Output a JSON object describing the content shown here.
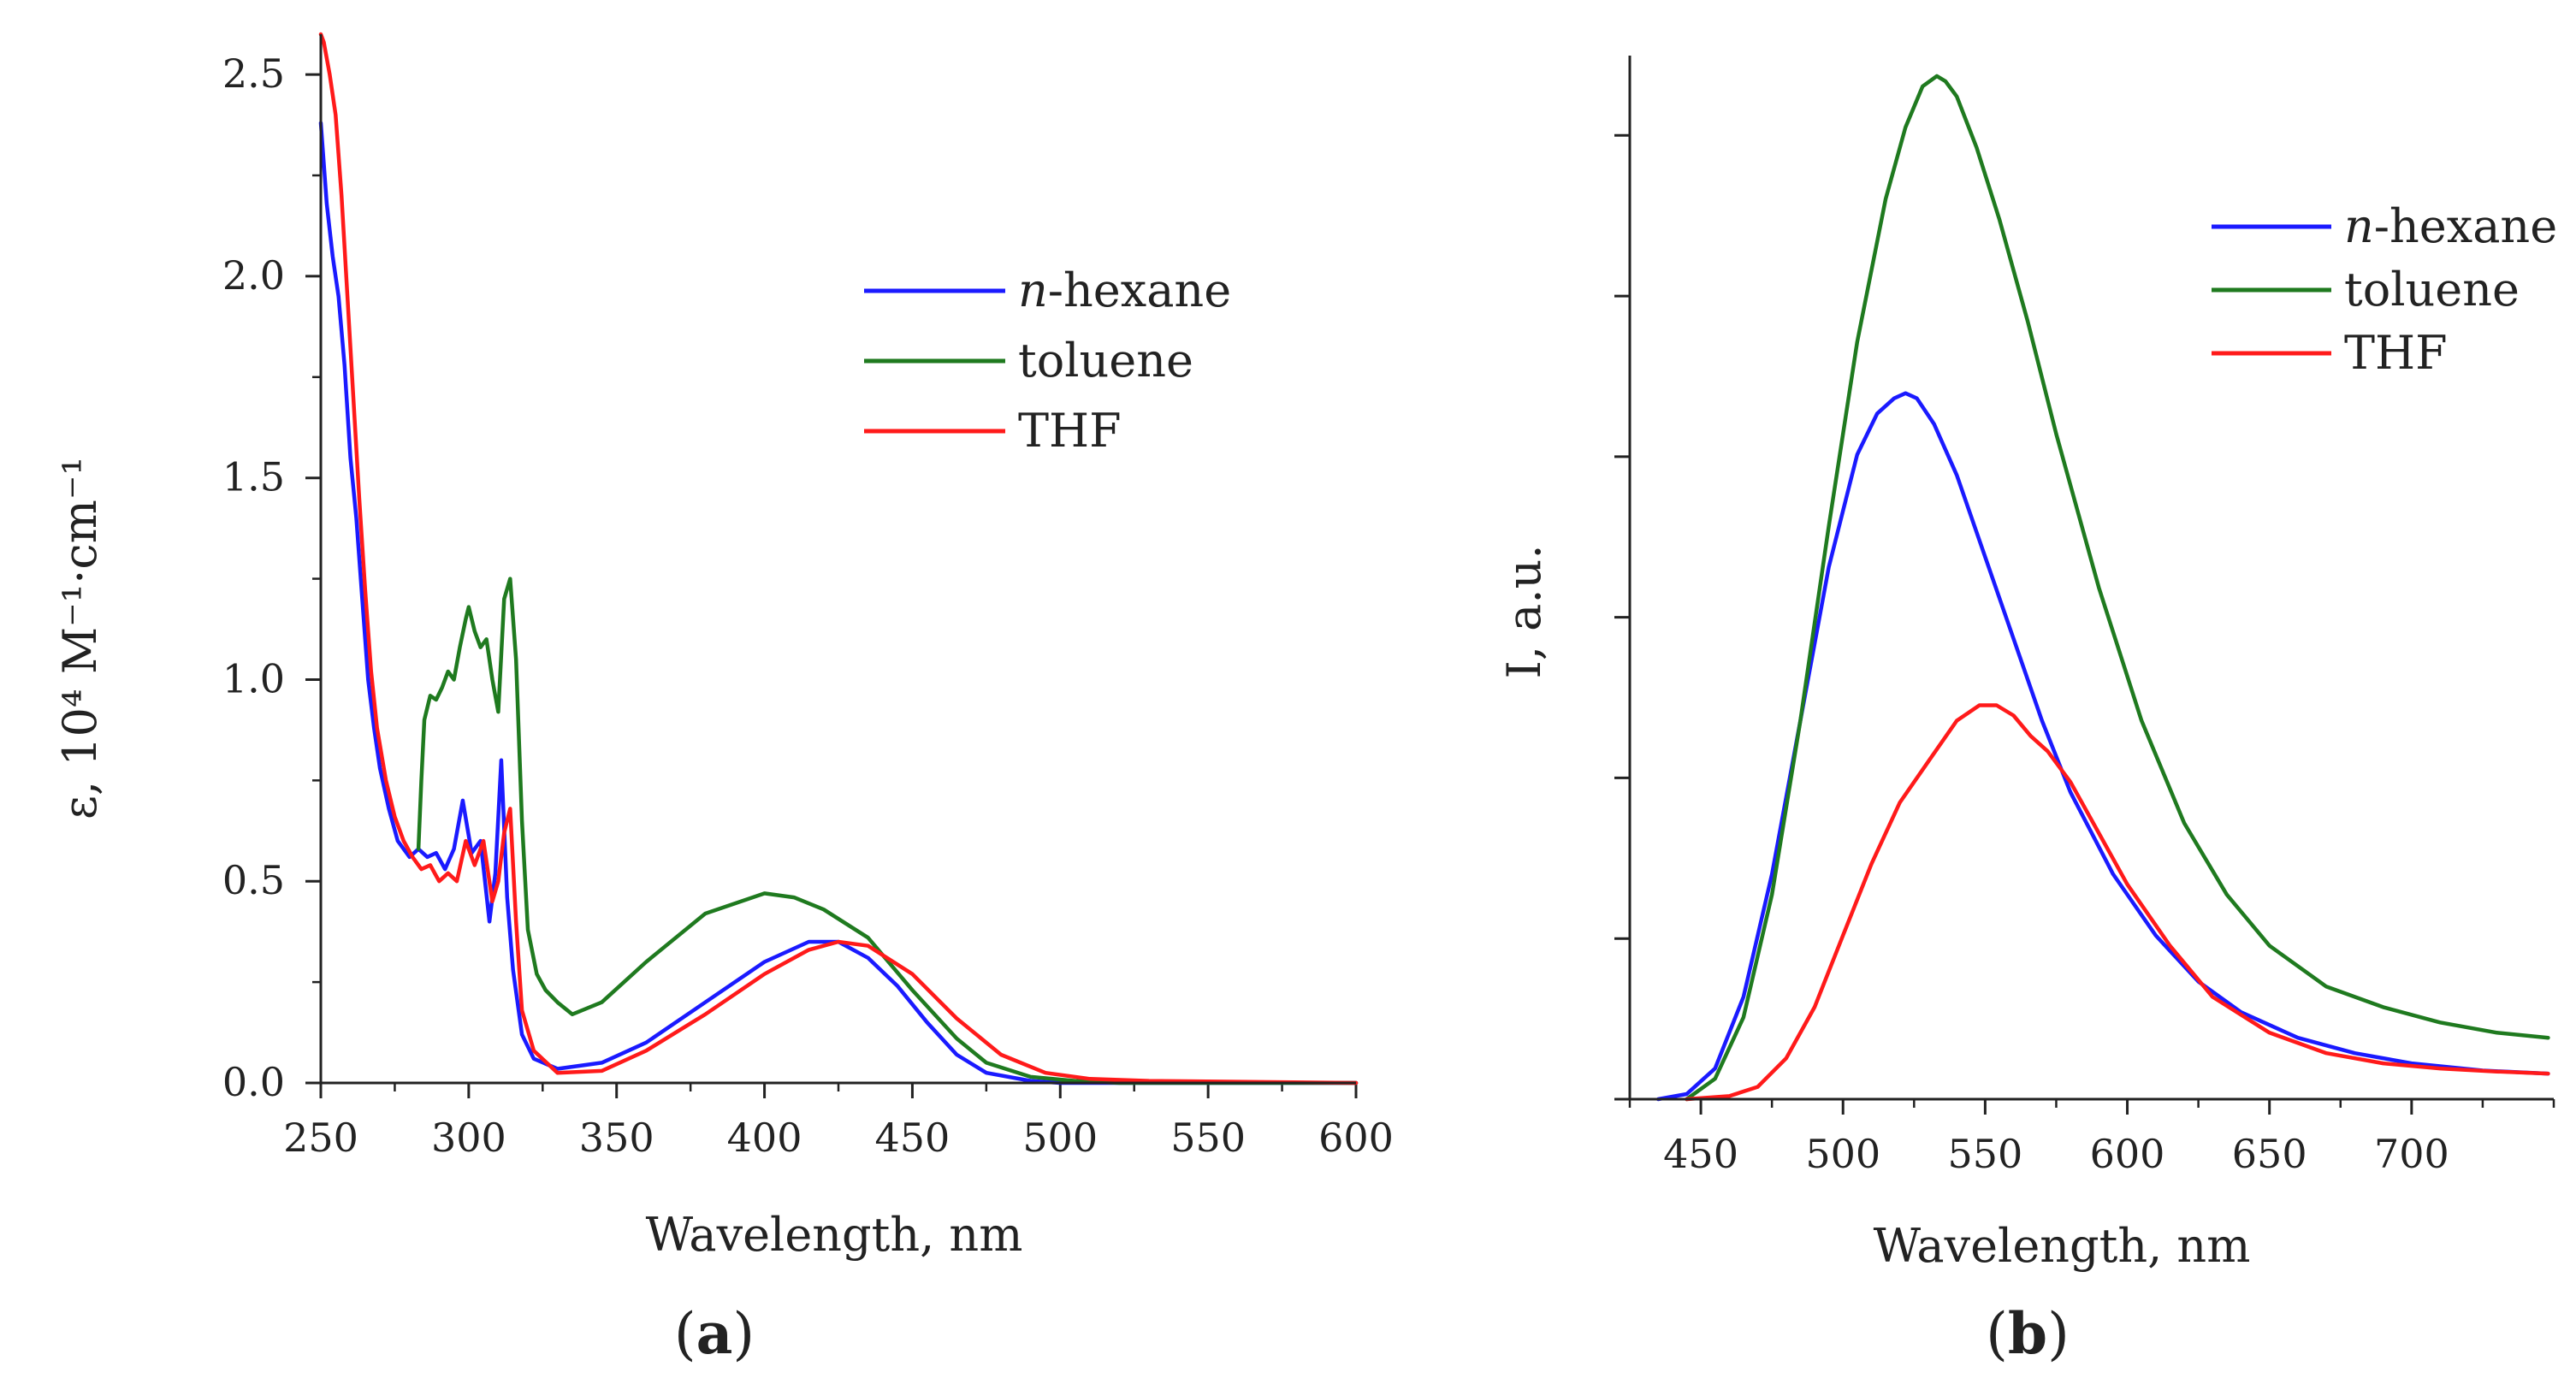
{
  "figure": {
    "panel_a_label": {
      "open": "(",
      "letter": "a",
      "close": ")"
    },
    "panel_b_label": {
      "open": "(",
      "letter": "b",
      "close": ")"
    }
  },
  "colors": {
    "n-hexane": "#1a1aff",
    "toluene": "#1f7a1f",
    "THF": "#ff1a1a"
  },
  "chart_data": [
    {
      "id": "a",
      "type": "line",
      "title": "",
      "xlabel": "Wavelength, nm",
      "ylabel": "ε, 10⁴ M⁻¹·cm⁻¹",
      "xlim": [
        250,
        600
      ],
      "ylim": [
        0,
        2.6
      ],
      "xticks": [
        250,
        300,
        350,
        400,
        450,
        500,
        550,
        600
      ],
      "yticks": [
        0.0,
        0.5,
        1.0,
        1.5,
        2.0,
        2.5
      ],
      "ytick_labels": [
        "0.0",
        "0.5",
        "1.0",
        "1.5",
        "2.0",
        "2.5"
      ],
      "legend_position": "upper-right",
      "series": [
        {
          "name": "n-hexane",
          "label_italic": "n",
          "label_rest": "-hexane",
          "x": [
            250,
            252,
            254,
            256,
            258,
            260,
            262,
            264,
            266,
            268,
            270,
            273,
            276,
            280,
            283,
            286,
            289,
            292,
            295,
            298,
            301,
            304,
            307,
            309,
            311,
            313,
            315,
            318,
            322,
            330,
            345,
            360,
            380,
            400,
            415,
            425,
            435,
            445,
            455,
            465,
            475,
            490,
            500,
            520,
            600
          ],
          "y": [
            2.38,
            2.18,
            2.05,
            1.95,
            1.78,
            1.55,
            1.4,
            1.2,
            1.0,
            0.88,
            0.78,
            0.68,
            0.6,
            0.56,
            0.58,
            0.56,
            0.57,
            0.53,
            0.58,
            0.7,
            0.57,
            0.6,
            0.4,
            0.52,
            0.8,
            0.46,
            0.28,
            0.12,
            0.06,
            0.035,
            0.05,
            0.1,
            0.2,
            0.3,
            0.35,
            0.35,
            0.31,
            0.24,
            0.15,
            0.07,
            0.025,
            0.005,
            0.0,
            0.0,
            0.0
          ]
        },
        {
          "name": "toluene",
          "label_italic": "",
          "label_rest": "toluene",
          "x": [
            283,
            284,
            285,
            287,
            289,
            291,
            293,
            295,
            297,
            299,
            300,
            302,
            304,
            306,
            308,
            310,
            312,
            314,
            316,
            318,
            320,
            323,
            326,
            330,
            335,
            345,
            360,
            380,
            400,
            410,
            420,
            435,
            450,
            465,
            475,
            490,
            505,
            520,
            600
          ],
          "y": [
            0.58,
            0.75,
            0.9,
            0.96,
            0.95,
            0.98,
            1.02,
            1.0,
            1.08,
            1.15,
            1.18,
            1.12,
            1.08,
            1.1,
            1.0,
            0.92,
            1.2,
            1.25,
            1.05,
            0.65,
            0.38,
            0.27,
            0.23,
            0.2,
            0.17,
            0.2,
            0.3,
            0.42,
            0.47,
            0.46,
            0.43,
            0.36,
            0.23,
            0.11,
            0.05,
            0.015,
            0.005,
            0.0,
            0.0
          ]
        },
        {
          "name": "THF",
          "label_italic": "",
          "label_rest": "THF",
          "x": [
            250,
            251,
            253,
            255,
            257,
            259,
            261,
            263,
            265,
            267,
            269,
            272,
            275,
            278,
            281,
            284,
            287,
            290,
            293,
            296,
            299,
            302,
            305,
            308,
            310,
            312,
            314,
            316,
            318,
            322,
            330,
            345,
            360,
            380,
            400,
            415,
            425,
            435,
            450,
            465,
            480,
            495,
            510,
            530,
            600
          ],
          "y": [
            2.6,
            2.58,
            2.5,
            2.4,
            2.2,
            1.95,
            1.7,
            1.45,
            1.22,
            1.02,
            0.88,
            0.75,
            0.66,
            0.6,
            0.56,
            0.53,
            0.54,
            0.5,
            0.52,
            0.5,
            0.6,
            0.54,
            0.6,
            0.45,
            0.5,
            0.62,
            0.68,
            0.4,
            0.18,
            0.08,
            0.025,
            0.03,
            0.08,
            0.17,
            0.27,
            0.33,
            0.35,
            0.34,
            0.27,
            0.16,
            0.07,
            0.025,
            0.01,
            0.005,
            0.0
          ]
        }
      ]
    },
    {
      "id": "b",
      "type": "line",
      "title": "",
      "xlabel": "Wavelength, nm",
      "ylabel": "I, a.u.",
      "xlim": [
        425,
        750
      ],
      "ylim": [
        0,
        1.02
      ],
      "xticks": [
        450,
        500,
        550,
        600,
        650,
        700
      ],
      "xticks_minor": [
        425,
        475,
        525,
        575,
        625,
        675,
        725,
        750
      ],
      "yticks_unlabeled": [
        0,
        0.157,
        0.314,
        0.471,
        0.628,
        0.785,
        0.942
      ],
      "legend_position": "upper-right",
      "series": [
        {
          "name": "n-hexane",
          "label_italic": "n",
          "label_rest": "-hexane",
          "x": [
            435,
            445,
            455,
            465,
            475,
            485,
            495,
            505,
            512,
            518,
            522,
            526,
            532,
            540,
            550,
            560,
            570,
            580,
            595,
            610,
            625,
            640,
            660,
            680,
            700,
            725,
            748
          ],
          "y": [
            0.0,
            0.005,
            0.03,
            0.1,
            0.22,
            0.37,
            0.52,
            0.63,
            0.67,
            0.685,
            0.69,
            0.685,
            0.66,
            0.61,
            0.53,
            0.45,
            0.37,
            0.3,
            0.22,
            0.16,
            0.115,
            0.085,
            0.06,
            0.045,
            0.035,
            0.028,
            0.025
          ]
        },
        {
          "name": "toluene",
          "label_italic": "",
          "label_rest": "toluene",
          "x": [
            445,
            455,
            465,
            475,
            485,
            495,
            505,
            515,
            522,
            528,
            533,
            536,
            540,
            547,
            555,
            565,
            575,
            590,
            605,
            620,
            635,
            650,
            670,
            690,
            710,
            730,
            748
          ],
          "y": [
            0.0,
            0.02,
            0.08,
            0.2,
            0.37,
            0.56,
            0.74,
            0.88,
            0.95,
            0.99,
            1.0,
            0.995,
            0.98,
            0.93,
            0.86,
            0.76,
            0.65,
            0.5,
            0.37,
            0.27,
            0.2,
            0.15,
            0.11,
            0.09,
            0.075,
            0.065,
            0.06
          ]
        },
        {
          "name": "THF",
          "label_italic": "",
          "label_rest": "THF",
          "x": [
            445,
            460,
            470,
            480,
            490,
            500,
            510,
            520,
            530,
            540,
            548,
            554,
            560,
            566,
            572,
            580,
            590,
            600,
            615,
            630,
            650,
            670,
            690,
            710,
            730,
            748
          ],
          "y": [
            0.0,
            0.003,
            0.012,
            0.04,
            0.09,
            0.16,
            0.23,
            0.29,
            0.33,
            0.37,
            0.385,
            0.385,
            0.375,
            0.355,
            0.34,
            0.31,
            0.26,
            0.21,
            0.15,
            0.1,
            0.065,
            0.045,
            0.035,
            0.03,
            0.027,
            0.025
          ]
        }
      ]
    }
  ]
}
